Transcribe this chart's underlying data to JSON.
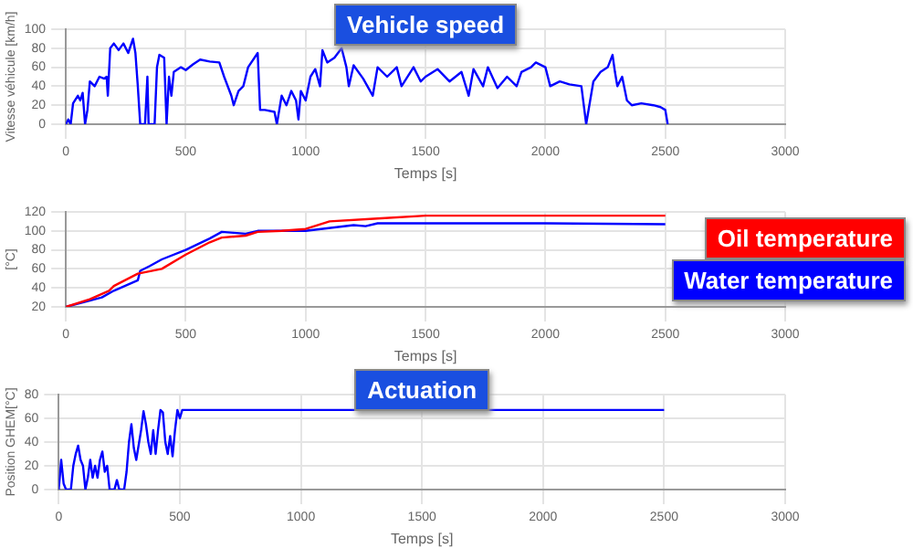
{
  "chart_data": [
    {
      "type": "line",
      "title": "Vehicle speed",
      "xlabel": "Temps [s]",
      "ylabel": "Vitesse véhicule [km/h]",
      "xlim": [
        0,
        3000
      ],
      "xticks": [
        0,
        500,
        1000,
        1500,
        2000,
        2500,
        3000
      ],
      "ylim": [
        0,
        100
      ],
      "yticks": [
        0,
        20,
        40,
        60,
        80,
        100
      ],
      "grid": true,
      "x": [
        0,
        10,
        20,
        30,
        50,
        60,
        70,
        80,
        90,
        100,
        120,
        140,
        160,
        170,
        175,
        185,
        200,
        220,
        240,
        260,
        280,
        290,
        300,
        310,
        330,
        340,
        345,
        370,
        380,
        390,
        410,
        420,
        430,
        440,
        450,
        480,
        500,
        530,
        560,
        600,
        640,
        660,
        690,
        700,
        720,
        740,
        760,
        800,
        810,
        830,
        870,
        880,
        900,
        920,
        940,
        960,
        970,
        980,
        1000,
        1020,
        1040,
        1060,
        1070,
        1090,
        1120,
        1150,
        1170,
        1180,
        1200,
        1240,
        1280,
        1300,
        1340,
        1380,
        1400,
        1450,
        1480,
        1500,
        1550,
        1600,
        1650,
        1680,
        1700,
        1740,
        1760,
        1800,
        1840,
        1880,
        1900,
        1940,
        1960,
        2000,
        2020,
        2060,
        2100,
        2150,
        2160,
        2170,
        2200,
        2230,
        2260,
        2280,
        2290,
        2300,
        2320,
        2340,
        2360,
        2400,
        2450,
        2480,
        2500,
        2510
      ],
      "series": [
        {
          "color": "#0000ff",
          "values": [
            0,
            5,
            0,
            22,
            30,
            25,
            33,
            0,
            15,
            45,
            40,
            50,
            48,
            50,
            30,
            80,
            85,
            78,
            85,
            75,
            90,
            75,
            40,
            0,
            0,
            50,
            0,
            0,
            60,
            73,
            70,
            0,
            50,
            30,
            55,
            60,
            57,
            63,
            68,
            66,
            65,
            50,
            30,
            20,
            35,
            40,
            60,
            75,
            15,
            15,
            13,
            0,
            30,
            20,
            35,
            25,
            5,
            35,
            25,
            50,
            58,
            40,
            78,
            65,
            70,
            80,
            60,
            40,
            62,
            48,
            30,
            60,
            50,
            60,
            40,
            60,
            45,
            50,
            58,
            45,
            55,
            30,
            58,
            40,
            60,
            38,
            50,
            40,
            55,
            60,
            65,
            60,
            40,
            45,
            42,
            40,
            20,
            0,
            45,
            55,
            60,
            73,
            55,
            40,
            50,
            25,
            20,
            22,
            20,
            18,
            15,
            0
          ]
        }
      ]
    },
    {
      "type": "line",
      "xlabel": "Temps [s]",
      "ylabel": "[°C]",
      "xlim": [
        0,
        3000
      ],
      "xticks": [
        0,
        500,
        1000,
        1500,
        2000,
        2500,
        3000
      ],
      "ylim": [
        20,
        120
      ],
      "yticks": [
        20,
        40,
        60,
        80,
        100,
        120
      ],
      "grid": true,
      "legend": "right",
      "series": [
        {
          "name": "Oil temperature",
          "color": "#ff0000",
          "x": [
            0,
            100,
            180,
            200,
            300,
            400,
            500,
            600,
            650,
            750,
            800,
            900,
            1000,
            1100,
            1300,
            1500,
            2000,
            2500
          ],
          "values": [
            20,
            28,
            37,
            42,
            55,
            60,
            75,
            88,
            93,
            95,
            99,
            100,
            102,
            110,
            113,
            116,
            116,
            116
          ]
        },
        {
          "name": "Water temperature",
          "color": "#0000ff",
          "x": [
            0,
            150,
            200,
            300,
            310,
            350,
            400,
            500,
            600,
            650,
            700,
            750,
            800,
            1000,
            1200,
            1250,
            1300,
            1500,
            2000,
            2500
          ],
          "values": [
            20,
            30,
            37,
            48,
            58,
            63,
            70,
            80,
            92,
            99,
            98,
            97,
            100,
            100,
            106,
            105,
            108,
            108,
            108,
            107
          ]
        }
      ]
    },
    {
      "type": "line",
      "title": "Actuation",
      "xlabel": "Temps [s]",
      "ylabel": "Position GHEM[°C]",
      "xlim": [
        0,
        3000
      ],
      "xticks": [
        0,
        500,
        1000,
        1500,
        2000,
        2500,
        3000
      ],
      "ylim": [
        0,
        80
      ],
      "yticks": [
        0,
        20,
        40,
        60,
        80
      ],
      "grid": true,
      "x": [
        0,
        10,
        20,
        30,
        50,
        60,
        70,
        80,
        90,
        100,
        110,
        120,
        130,
        140,
        150,
        160,
        170,
        180,
        190,
        200,
        210,
        230,
        240,
        250,
        270,
        280,
        290,
        300,
        310,
        320,
        340,
        350,
        360,
        370,
        380,
        390,
        400,
        410,
        420,
        430,
        440,
        450,
        460,
        470,
        480,
        490,
        500,
        510,
        2500
      ],
      "series": [
        {
          "color": "#0000ff",
          "values": [
            0,
            25,
            5,
            0,
            0,
            20,
            30,
            37,
            25,
            20,
            0,
            10,
            25,
            10,
            20,
            10,
            25,
            32,
            15,
            20,
            0,
            0,
            8,
            0,
            0,
            15,
            40,
            55,
            35,
            25,
            50,
            66,
            55,
            40,
            30,
            50,
            30,
            50,
            67,
            65,
            40,
            30,
            45,
            28,
            50,
            67,
            60,
            67,
            67
          ]
        }
      ]
    }
  ]
}
